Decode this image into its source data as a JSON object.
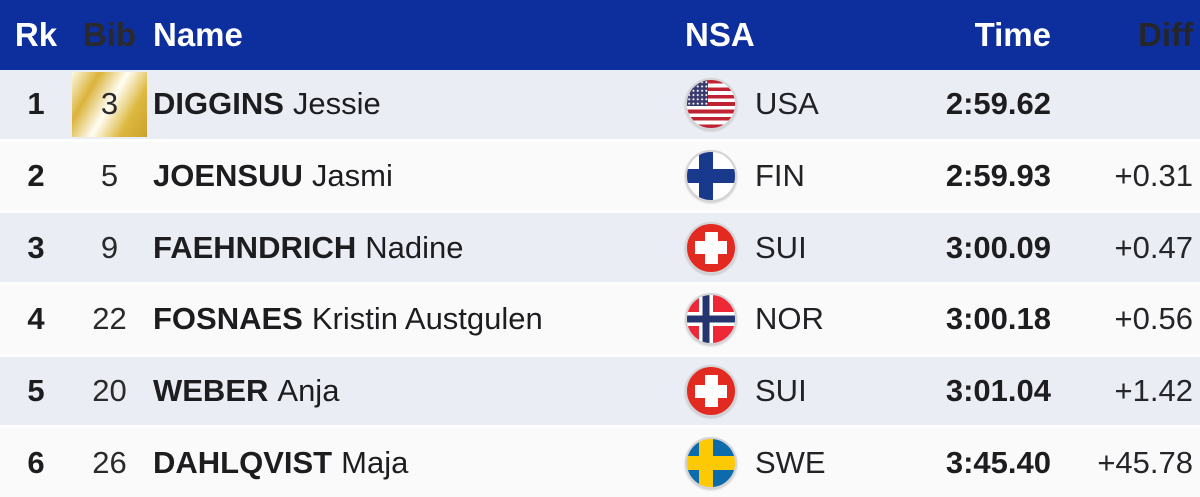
{
  "colors": {
    "header_bg": "#0d2f9d",
    "header_text": "#ffffff",
    "row_alt_bg": "#ebedf4",
    "row_bg": "#fafafb",
    "text": "#1d1d20",
    "leader_bib_gold": "#dab33a"
  },
  "table": {
    "headers": {
      "rank": "Rk",
      "bib": "Bib",
      "name": "Name",
      "nsa": "NSA",
      "time": "Time",
      "diff": "Diff"
    },
    "rows": [
      {
        "rank": "1",
        "bib": "3",
        "leader": "true",
        "family_name": "DIGGINS",
        "given_name": "Jessie",
        "flag": "usa",
        "nsa": "USA",
        "time": "2:59.62",
        "diff": ""
      },
      {
        "rank": "2",
        "bib": "5",
        "family_name": "JOENSUU",
        "given_name": "Jasmi",
        "flag": "fin",
        "nsa": "FIN",
        "time": "2:59.93",
        "diff": "+0.31"
      },
      {
        "rank": "3",
        "bib": "9",
        "family_name": "FAEHNDRICH",
        "given_name": "Nadine",
        "flag": "sui",
        "nsa": "SUI",
        "time": "3:00.09",
        "diff": "+0.47"
      },
      {
        "rank": "4",
        "bib": "22",
        "family_name": "FOSNAES",
        "given_name": "Kristin Austgulen",
        "flag": "nor",
        "nsa": "NOR",
        "time": "3:00.18",
        "diff": "+0.56"
      },
      {
        "rank": "5",
        "bib": "20",
        "family_name": "WEBER",
        "given_name": "Anja",
        "flag": "sui",
        "nsa": "SUI",
        "time": "3:01.04",
        "diff": "+1.42"
      },
      {
        "rank": "6",
        "bib": "26",
        "family_name": "DAHLQVIST",
        "given_name": "Maja",
        "flag": "swe",
        "nsa": "SWE",
        "time": "3:45.40",
        "diff": "+45.78"
      }
    ]
  }
}
